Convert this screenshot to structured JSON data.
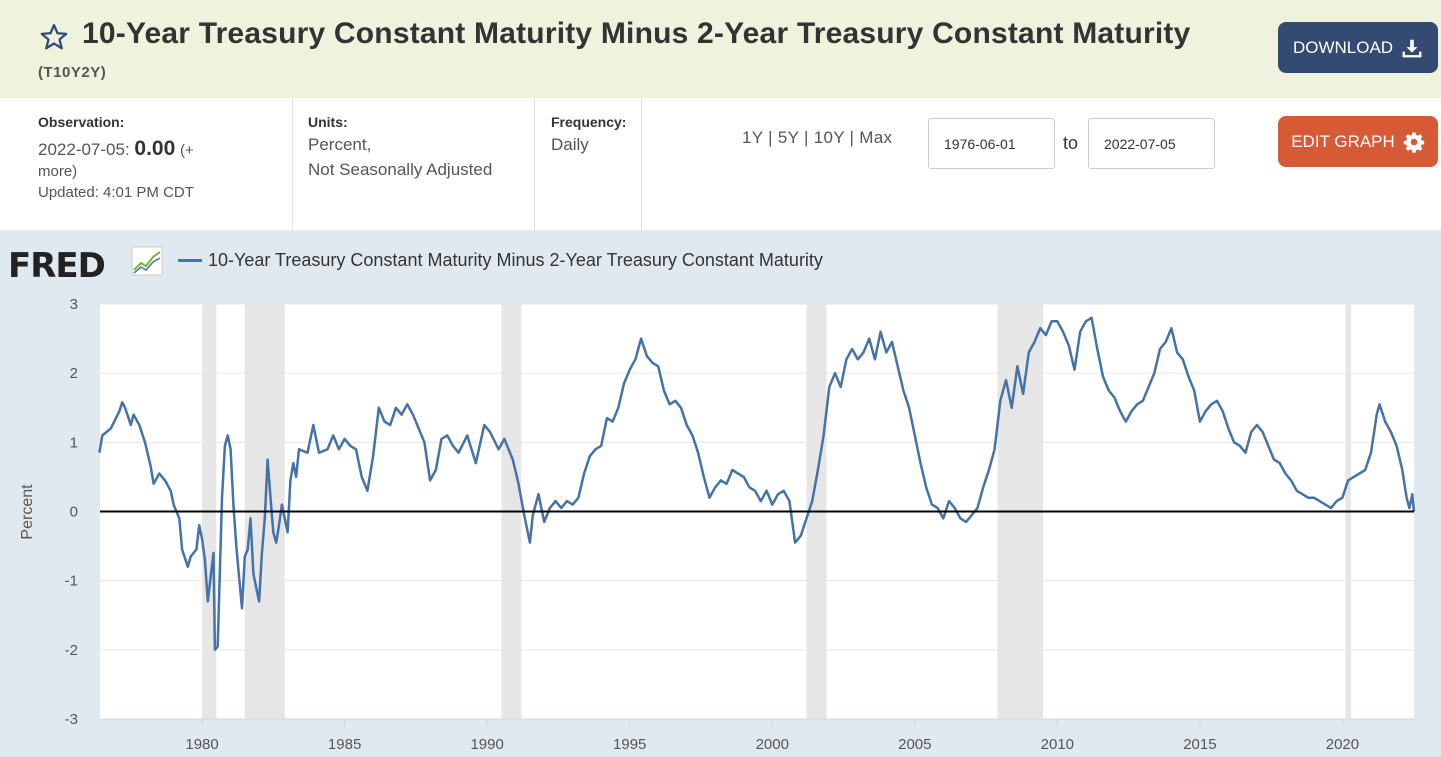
{
  "header": {
    "title": "10-Year Treasury Constant Maturity Minus 2-Year Treasury Constant Maturity",
    "series_id": "(T10Y2Y)",
    "download_label": "DOWNLOAD",
    "colors": {
      "background": "#eff2dc",
      "download_bg": "#334a72"
    }
  },
  "meta": {
    "observation_label": "Observation:",
    "observation_date": "2022-07-05:",
    "observation_value": "0.00",
    "observation_more_1": "(+",
    "observation_more_2": "more)",
    "updated": "Updated: 4:01 PM CDT",
    "units_label": "Units:",
    "units_line1": "Percent,",
    "units_line2": "Not Seasonally Adjusted",
    "frequency_label": "Frequency:",
    "frequency_value": "Daily"
  },
  "controls": {
    "range_links": "1Y | 5Y | 10Y | Max",
    "start_date": "1976-06-01",
    "to_label": "to",
    "end_date": "2022-07-05",
    "edit_label": "EDIT GRAPH",
    "colors": {
      "edit_bg": "#d75a36"
    }
  },
  "chart_header": {
    "logo": "FRED",
    "legend_label": "10-Year Treasury Constant Maturity Minus 2-Year Treasury Constant Maturity"
  },
  "chart_data": {
    "type": "line",
    "title": "",
    "ylabel": "Percent",
    "xlabel": "",
    "ylim": [
      -3,
      3
    ],
    "xlim": [
      "1976-06-01",
      "2022-07-05"
    ],
    "yticks": [
      3,
      2,
      1,
      0,
      -1,
      -2,
      -3
    ],
    "yticklabels": [
      "3",
      "2",
      "1",
      "0",
      "-1",
      "-2",
      "-3"
    ],
    "xticks": [
      1980,
      1985,
      1990,
      1995,
      2000,
      2005,
      2010,
      2015,
      2020
    ],
    "xticklabels": [
      "1980",
      "1985",
      "1990",
      "1995",
      "2000",
      "2005",
      "2010",
      "2015",
      "2020"
    ],
    "grid": true,
    "recessions": [
      [
        1980.0,
        1980.5
      ],
      [
        1981.5,
        1982.9
      ],
      [
        1990.5,
        1991.2
      ],
      [
        2001.2,
        2001.9
      ],
      [
        2007.9,
        2009.5
      ],
      [
        2020.1,
        2020.3
      ]
    ],
    "series": [
      {
        "name": "10-Year Treasury Constant Maturity Minus 2-Year Treasury Constant Maturity",
        "color": "#4572a7",
        "points": [
          [
            1976.4,
            0.85
          ],
          [
            1976.5,
            1.1
          ],
          [
            1976.8,
            1.2
          ],
          [
            1977.1,
            1.45
          ],
          [
            1977.2,
            1.58
          ],
          [
            1977.3,
            1.5
          ],
          [
            1977.5,
            1.25
          ],
          [
            1977.6,
            1.4
          ],
          [
            1977.8,
            1.25
          ],
          [
            1978.0,
            1.0
          ],
          [
            1978.2,
            0.65
          ],
          [
            1978.3,
            0.4
          ],
          [
            1978.5,
            0.55
          ],
          [
            1978.7,
            0.45
          ],
          [
            1978.9,
            0.3
          ],
          [
            1979.0,
            0.1
          ],
          [
            1979.2,
            -0.1
          ],
          [
            1979.3,
            -0.55
          ],
          [
            1979.5,
            -0.8
          ],
          [
            1979.6,
            -0.65
          ],
          [
            1979.8,
            -0.55
          ],
          [
            1979.9,
            -0.2
          ],
          [
            1980.0,
            -0.4
          ],
          [
            1980.1,
            -0.7
          ],
          [
            1980.2,
            -1.3
          ],
          [
            1980.3,
            -0.95
          ],
          [
            1980.4,
            -0.6
          ],
          [
            1980.45,
            -2.0
          ],
          [
            1980.55,
            -1.95
          ],
          [
            1980.7,
            0.2
          ],
          [
            1980.8,
            0.95
          ],
          [
            1980.9,
            1.1
          ],
          [
            1981.0,
            0.9
          ],
          [
            1981.1,
            0.1
          ],
          [
            1981.2,
            -0.5
          ],
          [
            1981.3,
            -0.95
          ],
          [
            1981.4,
            -1.4
          ],
          [
            1981.5,
            -0.65
          ],
          [
            1981.6,
            -0.55
          ],
          [
            1981.7,
            -0.1
          ],
          [
            1981.8,
            -0.9
          ],
          [
            1981.9,
            -1.1
          ],
          [
            1982.0,
            -1.3
          ],
          [
            1982.1,
            -0.6
          ],
          [
            1982.2,
            -0.1
          ],
          [
            1982.3,
            0.75
          ],
          [
            1982.4,
            0.2
          ],
          [
            1982.5,
            -0.3
          ],
          [
            1982.6,
            -0.45
          ],
          [
            1982.7,
            -0.2
          ],
          [
            1982.8,
            0.1
          ],
          [
            1983.0,
            -0.3
          ],
          [
            1983.1,
            0.45
          ],
          [
            1983.2,
            0.7
          ],
          [
            1983.3,
            0.5
          ],
          [
            1983.4,
            0.9
          ],
          [
            1983.7,
            0.85
          ],
          [
            1983.9,
            1.25
          ],
          [
            1984.1,
            0.85
          ],
          [
            1984.4,
            0.9
          ],
          [
            1984.6,
            1.1
          ],
          [
            1984.8,
            0.9
          ],
          [
            1985.0,
            1.05
          ],
          [
            1985.2,
            0.95
          ],
          [
            1985.4,
            0.9
          ],
          [
            1985.6,
            0.5
          ],
          [
            1985.8,
            0.3
          ],
          [
            1986.0,
            0.8
          ],
          [
            1986.2,
            1.5
          ],
          [
            1986.4,
            1.3
          ],
          [
            1986.6,
            1.25
          ],
          [
            1986.8,
            1.5
          ],
          [
            1987.0,
            1.4
          ],
          [
            1987.2,
            1.55
          ],
          [
            1987.4,
            1.4
          ],
          [
            1987.6,
            1.2
          ],
          [
            1987.8,
            1.0
          ],
          [
            1988.0,
            0.45
          ],
          [
            1988.2,
            0.6
          ],
          [
            1988.4,
            1.05
          ],
          [
            1988.6,
            1.1
          ],
          [
            1988.8,
            0.95
          ],
          [
            1989.0,
            0.85
          ],
          [
            1989.3,
            1.1
          ],
          [
            1989.6,
            0.7
          ],
          [
            1989.9,
            1.25
          ],
          [
            1990.1,
            1.15
          ],
          [
            1990.4,
            0.9
          ],
          [
            1990.6,
            1.05
          ],
          [
            1990.9,
            0.75
          ],
          [
            1991.1,
            0.4
          ],
          [
            1991.3,
            -0.05
          ],
          [
            1991.5,
            -0.45
          ],
          [
            1991.6,
            -0.05
          ],
          [
            1991.8,
            0.25
          ],
          [
            1992.0,
            -0.15
          ],
          [
            1992.2,
            0.05
          ],
          [
            1992.4,
            0.15
          ],
          [
            1992.6,
            0.05
          ],
          [
            1992.8,
            0.15
          ],
          [
            1993.0,
            0.1
          ],
          [
            1993.2,
            0.2
          ],
          [
            1993.4,
            0.55
          ],
          [
            1993.6,
            0.8
          ],
          [
            1993.8,
            0.9
          ],
          [
            1994.0,
            0.95
          ],
          [
            1994.2,
            1.35
          ],
          [
            1994.4,
            1.3
          ],
          [
            1994.6,
            1.5
          ],
          [
            1994.8,
            1.85
          ],
          [
            1995.0,
            2.05
          ],
          [
            1995.2,
            2.2
          ],
          [
            1995.4,
            2.5
          ],
          [
            1995.6,
            2.25
          ],
          [
            1995.8,
            2.15
          ],
          [
            1996.0,
            2.1
          ],
          [
            1996.2,
            1.75
          ],
          [
            1996.4,
            1.55
          ],
          [
            1996.6,
            1.6
          ],
          [
            1996.8,
            1.5
          ],
          [
            1997.0,
            1.25
          ],
          [
            1997.2,
            1.1
          ],
          [
            1997.4,
            0.85
          ],
          [
            1997.6,
            0.5
          ],
          [
            1997.8,
            0.2
          ],
          [
            1998.0,
            0.35
          ],
          [
            1998.2,
            0.45
          ],
          [
            1998.4,
            0.4
          ],
          [
            1998.6,
            0.6
          ],
          [
            1998.8,
            0.55
          ],
          [
            1999.0,
            0.5
          ],
          [
            1999.2,
            0.35
          ],
          [
            1999.4,
            0.3
          ],
          [
            1999.6,
            0.15
          ],
          [
            1999.8,
            0.3
          ],
          [
            2000.0,
            0.1
          ],
          [
            2000.2,
            0.25
          ],
          [
            2000.4,
            0.3
          ],
          [
            2000.6,
            0.15
          ],
          [
            2000.8,
            -0.45
          ],
          [
            2001.0,
            -0.35
          ],
          [
            2001.2,
            -0.1
          ],
          [
            2001.4,
            0.15
          ],
          [
            2001.6,
            0.6
          ],
          [
            2001.8,
            1.1
          ],
          [
            2002.0,
            1.8
          ],
          [
            2002.2,
            2.0
          ],
          [
            2002.4,
            1.8
          ],
          [
            2002.6,
            2.2
          ],
          [
            2002.8,
            2.35
          ],
          [
            2003.0,
            2.2
          ],
          [
            2003.2,
            2.3
          ],
          [
            2003.4,
            2.5
          ],
          [
            2003.6,
            2.2
          ],
          [
            2003.8,
            2.6
          ],
          [
            2004.0,
            2.3
          ],
          [
            2004.2,
            2.45
          ],
          [
            2004.4,
            2.1
          ],
          [
            2004.6,
            1.75
          ],
          [
            2004.8,
            1.5
          ],
          [
            2005.0,
            1.1
          ],
          [
            2005.2,
            0.7
          ],
          [
            2005.4,
            0.35
          ],
          [
            2005.6,
            0.1
          ],
          [
            2005.8,
            0.05
          ],
          [
            2006.0,
            -0.1
          ],
          [
            2006.2,
            0.15
          ],
          [
            2006.4,
            0.05
          ],
          [
            2006.6,
            -0.1
          ],
          [
            2006.8,
            -0.15
          ],
          [
            2007.0,
            -0.05
          ],
          [
            2007.2,
            0.05
          ],
          [
            2007.4,
            0.35
          ],
          [
            2007.6,
            0.6
          ],
          [
            2007.8,
            0.9
          ],
          [
            2008.0,
            1.6
          ],
          [
            2008.2,
            1.9
          ],
          [
            2008.4,
            1.5
          ],
          [
            2008.6,
            2.1
          ],
          [
            2008.8,
            1.7
          ],
          [
            2009.0,
            2.3
          ],
          [
            2009.2,
            2.45
          ],
          [
            2009.4,
            2.65
          ],
          [
            2009.6,
            2.55
          ],
          [
            2009.8,
            2.75
          ],
          [
            2010.0,
            2.75
          ],
          [
            2010.2,
            2.6
          ],
          [
            2010.4,
            2.4
          ],
          [
            2010.6,
            2.05
          ],
          [
            2010.8,
            2.6
          ],
          [
            2011.0,
            2.75
          ],
          [
            2011.2,
            2.8
          ],
          [
            2011.4,
            2.35
          ],
          [
            2011.6,
            1.95
          ],
          [
            2011.8,
            1.75
          ],
          [
            2012.0,
            1.65
          ],
          [
            2012.2,
            1.45
          ],
          [
            2012.4,
            1.3
          ],
          [
            2012.6,
            1.45
          ],
          [
            2012.8,
            1.55
          ],
          [
            2013.0,
            1.6
          ],
          [
            2013.2,
            1.8
          ],
          [
            2013.4,
            2.0
          ],
          [
            2013.6,
            2.35
          ],
          [
            2013.8,
            2.45
          ],
          [
            2014.0,
            2.65
          ],
          [
            2014.2,
            2.3
          ],
          [
            2014.4,
            2.2
          ],
          [
            2014.6,
            1.95
          ],
          [
            2014.8,
            1.75
          ],
          [
            2015.0,
            1.3
          ],
          [
            2015.2,
            1.45
          ],
          [
            2015.4,
            1.55
          ],
          [
            2015.6,
            1.6
          ],
          [
            2015.8,
            1.45
          ],
          [
            2016.0,
            1.2
          ],
          [
            2016.2,
            1.0
          ],
          [
            2016.4,
            0.95
          ],
          [
            2016.6,
            0.85
          ],
          [
            2016.8,
            1.15
          ],
          [
            2017.0,
            1.25
          ],
          [
            2017.2,
            1.15
          ],
          [
            2017.4,
            0.95
          ],
          [
            2017.6,
            0.75
          ],
          [
            2017.8,
            0.7
          ],
          [
            2018.0,
            0.55
          ],
          [
            2018.2,
            0.45
          ],
          [
            2018.4,
            0.3
          ],
          [
            2018.6,
            0.25
          ],
          [
            2018.8,
            0.2
          ],
          [
            2019.0,
            0.2
          ],
          [
            2019.2,
            0.15
          ],
          [
            2019.4,
            0.1
          ],
          [
            2019.6,
            0.05
          ],
          [
            2019.8,
            0.15
          ],
          [
            2020.0,
            0.2
          ],
          [
            2020.2,
            0.45
          ],
          [
            2020.4,
            0.5
          ],
          [
            2020.6,
            0.55
          ],
          [
            2020.8,
            0.6
          ],
          [
            2021.0,
            0.85
          ],
          [
            2021.2,
            1.4
          ],
          [
            2021.3,
            1.55
          ],
          [
            2021.5,
            1.3
          ],
          [
            2021.7,
            1.15
          ],
          [
            2021.9,
            0.95
          ],
          [
            2022.1,
            0.6
          ],
          [
            2022.25,
            0.2
          ],
          [
            2022.35,
            0.05
          ],
          [
            2022.45,
            0.25
          ],
          [
            2022.51,
            0.0
          ]
        ]
      }
    ],
    "zero_line": true
  }
}
